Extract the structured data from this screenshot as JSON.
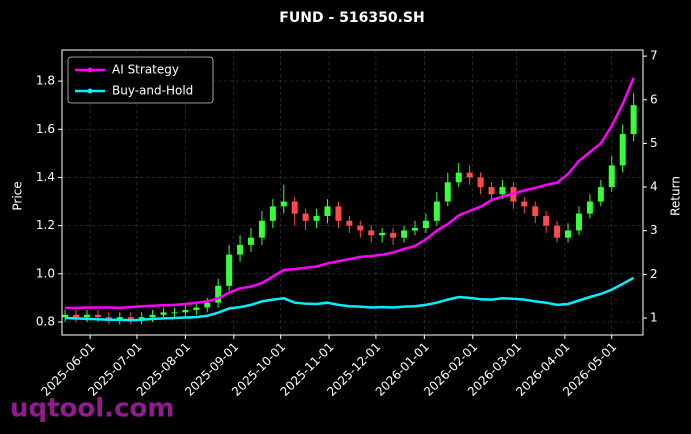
{
  "chart_data": {
    "type": "candlestick",
    "title": "FUND - 516350.SH",
    "ylabel": "Price",
    "y2label": "Return",
    "watermark": "uqtool.com",
    "up_color": "#39ff3a",
    "down_color": "#ff4a4a",
    "grid": true,
    "legend": "upper left",
    "x": [
      "2025-05-16",
      "2025-05-23",
      "2025-05-30",
      "2025-06-06",
      "2025-06-13",
      "2025-06-20",
      "2025-06-27",
      "2025-07-04",
      "2025-07-11",
      "2025-07-18",
      "2025-07-25",
      "2025-08-01",
      "2025-08-08",
      "2025-08-15",
      "2025-08-22",
      "2025-08-29",
      "2025-09-05",
      "2025-09-12",
      "2025-09-19",
      "2025-09-26",
      "2025-10-03",
      "2025-10-10",
      "2025-10-17",
      "2025-10-24",
      "2025-10-31",
      "2025-11-07",
      "2025-11-14",
      "2025-11-21",
      "2025-11-28",
      "2025-12-05",
      "2025-12-12",
      "2025-12-19",
      "2025-12-26",
      "2026-01-02",
      "2026-01-09",
      "2026-01-16",
      "2026-01-23",
      "2026-01-30",
      "2026-02-06",
      "2026-02-13",
      "2026-02-20",
      "2026-02-27",
      "2026-03-06",
      "2026-03-13",
      "2026-03-20",
      "2026-03-27",
      "2026-04-03",
      "2026-04-10",
      "2026-04-17",
      "2026-04-24",
      "2026-05-01",
      "2026-05-08",
      "2026-05-15"
    ],
    "open": [
      0.82,
      0.83,
      0.82,
      0.83,
      0.82,
      0.81,
      0.82,
      0.81,
      0.82,
      0.83,
      0.84,
      0.84,
      0.85,
      0.86,
      0.88,
      0.95,
      1.08,
      1.12,
      1.15,
      1.22,
      1.28,
      1.3,
      1.25,
      1.22,
      1.24,
      1.28,
      1.22,
      1.2,
      1.18,
      1.16,
      1.17,
      1.15,
      1.18,
      1.19,
      1.22,
      1.3,
      1.38,
      1.42,
      1.4,
      1.36,
      1.33,
      1.36,
      1.3,
      1.28,
      1.24,
      1.2,
      1.15,
      1.18,
      1.25,
      1.3,
      1.36,
      1.45,
      1.58
    ],
    "high": [
      0.85,
      0.85,
      0.85,
      0.85,
      0.84,
      0.84,
      0.84,
      0.84,
      0.85,
      0.86,
      0.86,
      0.87,
      0.88,
      0.9,
      0.98,
      1.12,
      1.16,
      1.19,
      1.26,
      1.31,
      1.37,
      1.32,
      1.27,
      1.27,
      1.31,
      1.3,
      1.24,
      1.22,
      1.2,
      1.19,
      1.19,
      1.2,
      1.22,
      1.25,
      1.34,
      1.42,
      1.46,
      1.45,
      1.42,
      1.38,
      1.39,
      1.38,
      1.32,
      1.3,
      1.26,
      1.22,
      1.21,
      1.28,
      1.33,
      1.39,
      1.49,
      1.62,
      1.75
    ],
    "low": [
      0.8,
      0.8,
      0.8,
      0.8,
      0.79,
      0.79,
      0.79,
      0.79,
      0.8,
      0.81,
      0.82,
      0.82,
      0.83,
      0.84,
      0.86,
      0.93,
      1.05,
      1.09,
      1.12,
      1.19,
      1.25,
      1.2,
      1.18,
      1.19,
      1.21,
      1.19,
      1.17,
      1.15,
      1.13,
      1.13,
      1.12,
      1.13,
      1.16,
      1.17,
      1.2,
      1.28,
      1.36,
      1.37,
      1.33,
      1.3,
      1.31,
      1.27,
      1.25,
      1.21,
      1.17,
      1.13,
      1.13,
      1.16,
      1.23,
      1.28,
      1.34,
      1.42,
      1.55
    ],
    "close": [
      0.83,
      0.82,
      0.83,
      0.82,
      0.81,
      0.82,
      0.81,
      0.82,
      0.83,
      0.84,
      0.84,
      0.85,
      0.86,
      0.88,
      0.95,
      1.08,
      1.12,
      1.15,
      1.22,
      1.28,
      1.3,
      1.25,
      1.22,
      1.24,
      1.28,
      1.22,
      1.2,
      1.18,
      1.16,
      1.17,
      1.15,
      1.18,
      1.19,
      1.22,
      1.3,
      1.38,
      1.42,
      1.4,
      1.36,
      1.33,
      1.36,
      1.3,
      1.28,
      1.24,
      1.2,
      1.15,
      1.18,
      1.25,
      1.3,
      1.36,
      1.45,
      1.58,
      1.7
    ],
    "series": [
      {
        "name": "AI Strategy",
        "color": "#ff00ff",
        "axis": "y2",
        "values": [
          1.23,
          1.23,
          1.24,
          1.24,
          1.24,
          1.23,
          1.25,
          1.27,
          1.28,
          1.29,
          1.3,
          1.32,
          1.35,
          1.38,
          1.45,
          1.58,
          1.68,
          1.72,
          1.8,
          1.95,
          2.1,
          2.12,
          2.15,
          2.18,
          2.25,
          2.3,
          2.35,
          2.4,
          2.42,
          2.45,
          2.5,
          2.58,
          2.65,
          2.8,
          3.0,
          3.15,
          3.35,
          3.45,
          3.55,
          3.7,
          3.78,
          3.85,
          3.92,
          3.98,
          4.05,
          4.1,
          4.3,
          4.6,
          4.8,
          5.0,
          5.4,
          5.9,
          6.5
        ]
      },
      {
        "name": "Buy-and-Hold",
        "color": "#00f0ff",
        "axis": "y2",
        "values": [
          1.0,
          0.99,
          0.98,
          0.97,
          0.96,
          0.96,
          0.95,
          0.96,
          0.98,
          0.99,
          1.0,
          1.01,
          1.02,
          1.05,
          1.12,
          1.22,
          1.25,
          1.3,
          1.38,
          1.42,
          1.45,
          1.35,
          1.33,
          1.32,
          1.35,
          1.3,
          1.27,
          1.26,
          1.24,
          1.25,
          1.24,
          1.26,
          1.27,
          1.3,
          1.35,
          1.42,
          1.48,
          1.46,
          1.43,
          1.42,
          1.45,
          1.44,
          1.42,
          1.38,
          1.35,
          1.3,
          1.32,
          1.4,
          1.48,
          1.55,
          1.65,
          1.78,
          1.92
        ]
      }
    ],
    "xlim": [
      "2025-05-14",
      "2026-05-21"
    ],
    "xticks": [
      "2025-06-01",
      "2025-07-01",
      "2025-08-01",
      "2025-09-01",
      "2025-10-01",
      "2025-11-01",
      "2025-12-01",
      "2026-01-01",
      "2026-02-01",
      "2026-03-01",
      "2026-04-01",
      "2026-05-01"
    ],
    "ylim": [
      0.746,
      1.929
    ],
    "yticks": [
      0.8,
      {
        "value": 1,
        "label": "1.0"
      },
      1.2,
      1.4,
      1.6,
      1.8
    ],
    "y2lim": [
      0.61,
      7.14
    ],
    "y2ticks": [
      1,
      2,
      3,
      4,
      5,
      6,
      7
    ]
  }
}
